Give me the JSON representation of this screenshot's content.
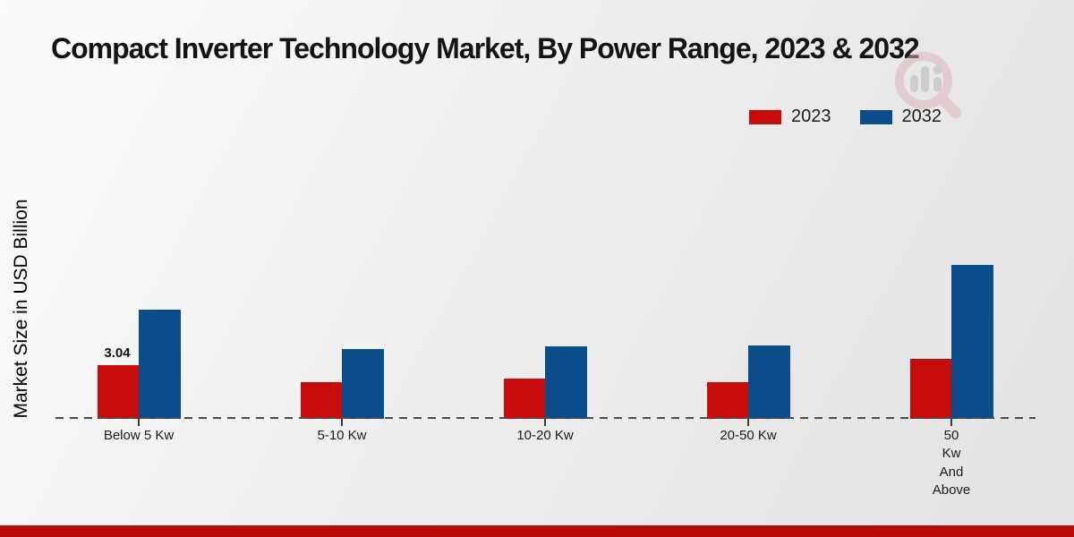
{
  "title": "Compact Inverter Technology Market, By Power Range, 2023 & 2032",
  "y_axis_label": "Market Size in USD Billion",
  "legend": {
    "items": [
      {
        "label": "2023",
        "color": "#c70c0c"
      },
      {
        "label": "2032",
        "color": "#0b4d8b"
      }
    ]
  },
  "footer": {
    "band_color": "#b90b0b"
  },
  "watermark_icon": "magnifier-bar-chart-logo",
  "chart_data": {
    "type": "bar",
    "title": "Compact Inverter Technology Market, By Power Range, 2023 & 2032",
    "xlabel": "",
    "ylabel": "Market Size in USD Billion",
    "categories": [
      "Below 5 Kw",
      "5-10 Kw",
      "10-20 Kw",
      "20-50 Kw",
      "50 Kw And Above"
    ],
    "series": [
      {
        "name": "2023",
        "color": "#c70c0c",
        "values": [
          3.04,
          2.1,
          2.28,
          2.08,
          3.4
        ]
      },
      {
        "name": "2032",
        "color": "#0b4d8b",
        "values": [
          6.18,
          3.95,
          4.1,
          4.15,
          8.71
        ]
      }
    ],
    "annotations": [
      {
        "series": "2023",
        "category": "Below 5 Kw",
        "text": "3.04"
      }
    ],
    "ylim": [
      0,
      9.5
    ],
    "grid": false,
    "y_ticks_visible": false,
    "baseline_style": "dashed",
    "legend_position": "top-right"
  },
  "category_display": [
    "Below 5 Kw",
    "5-10 Kw",
    "10-20 Kw",
    "20-50 Kw",
    "50\nKw\nAnd\nAbove"
  ]
}
